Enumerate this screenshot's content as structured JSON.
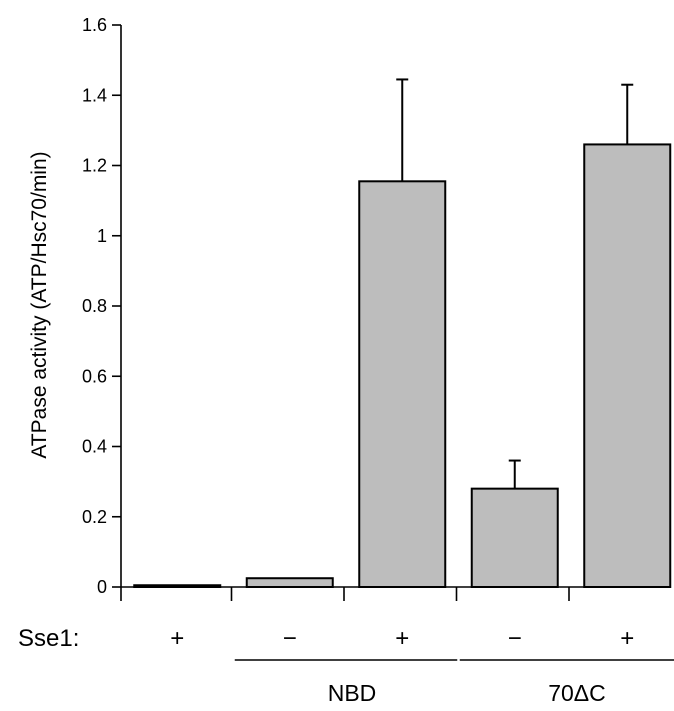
{
  "chart_data": {
    "type": "bar",
    "title": "",
    "ylabel": "ATPase activity (ATP/Hsc70/min)",
    "xlabel": "",
    "ylim": [
      0,
      1.6
    ],
    "yticks": [
      0,
      0.2,
      0.4,
      0.6,
      0.8,
      1,
      1.2,
      1.4,
      1.6
    ],
    "ytick_labels": [
      "0",
      "0.2",
      "0.4",
      "0.6",
      "0.8",
      "1",
      "1.2",
      "1.4",
      "1.6"
    ],
    "bar_color": "#bdbdbd",
    "categories": [
      "+",
      "−",
      "+",
      "−",
      "+"
    ],
    "values": [
      0.005,
      0.025,
      1.155,
      0.28,
      1.26
    ],
    "errors": [
      null,
      null,
      0.29,
      0.08,
      0.17
    ],
    "row_label": "Sse1:",
    "groups": [
      {
        "label": "NBD",
        "span": [
          1,
          2
        ]
      },
      {
        "label": "70ΔC",
        "span": [
          3,
          4
        ]
      }
    ],
    "grid": false,
    "legend": "none"
  }
}
